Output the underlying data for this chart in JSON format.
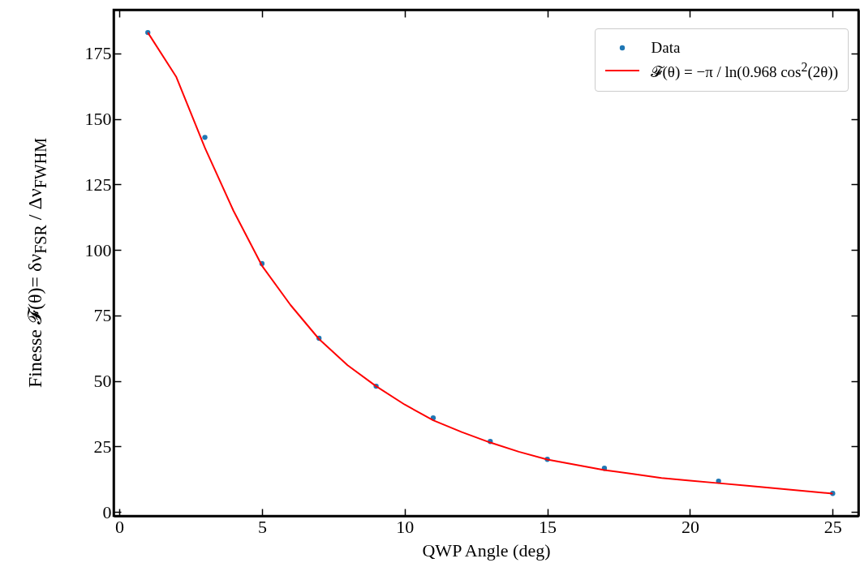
{
  "chart_data": {
    "type": "scatter",
    "xlabel": "QWP Angle (deg)",
    "ylabel": "Finesse 𝓕(θ)= δν$_{FSR}$ / Δν$_{FWHM}$",
    "xlim": [
      -0.2,
      25.9
    ],
    "ylim": [
      -1.5,
      191.7
    ],
    "xticks": [
      0,
      5,
      10,
      15,
      20,
      25
    ],
    "yticks": [
      0,
      25,
      50,
      75,
      100,
      125,
      150,
      175
    ],
    "legend": "top right",
    "series": [
      {
        "name": "Data",
        "marker": "circle",
        "color": "#1f77b4",
        "x": [
          1,
          3,
          5,
          7,
          9,
          11,
          13,
          15,
          17,
          21,
          25
        ],
        "values": [
          183,
          143,
          94.8,
          66.3,
          48,
          35.9,
          26.9,
          20.1,
          16.7,
          11.8,
          7.1
        ]
      },
      {
        "name": "𝓕(θ) = −π / ln(0.968 cos$^{2}$(2θ))",
        "type": "line",
        "color": "#ff0000",
        "line_style": "solid",
        "x": [
          1,
          2,
          3,
          4,
          5,
          6,
          7,
          8,
          9,
          10,
          11,
          12,
          13,
          14,
          15,
          16,
          17,
          18,
          19,
          20,
          21,
          22,
          23,
          24,
          25
        ],
        "values": [
          183,
          166,
          139,
          115,
          94,
          79,
          66,
          56,
          48,
          41,
          35,
          30.5,
          26.5,
          23,
          20,
          18,
          16,
          14.5,
          13,
          12,
          11,
          10,
          9,
          8,
          7
        ]
      }
    ]
  }
}
